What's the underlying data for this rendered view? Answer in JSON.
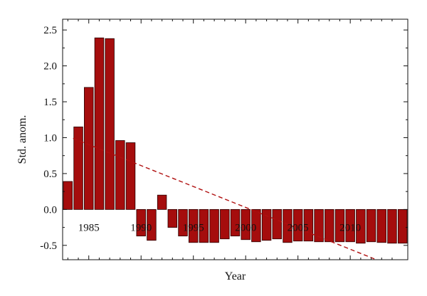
{
  "chart_data": {
    "type": "bar",
    "xlabel": "Year",
    "ylabel": "Std. anom.",
    "title": "",
    "xlim": [
      1982.5,
      2015.5
    ],
    "ylim": [
      -0.7,
      2.65
    ],
    "x_ticks": [
      1985,
      1990,
      1995,
      2000,
      2005,
      2010
    ],
    "y_ticks": [
      -0.5,
      0.0,
      0.5,
      1.0,
      1.5,
      2.0,
      2.5
    ],
    "y_tick_labels": [
      "-0.5",
      "0.0",
      "0.5",
      "1.0",
      "1.5",
      "2.0",
      "2.5"
    ],
    "grid": false,
    "bar_color": "#A50D0D",
    "bar_edge_color": "#2a0000",
    "trend_color": "#B01010",
    "x": [
      1983,
      1984,
      1985,
      1986,
      1987,
      1988,
      1989,
      1990,
      1991,
      1992,
      1993,
      1994,
      1995,
      1996,
      1997,
      1998,
      1999,
      2000,
      2001,
      2002,
      2003,
      2004,
      2005,
      2006,
      2007,
      2008,
      2009,
      2010,
      2011,
      2012,
      2013,
      2014,
      2015
    ],
    "values": [
      0.39,
      1.15,
      1.7,
      2.39,
      2.38,
      0.96,
      0.93,
      -0.37,
      -0.43,
      0.2,
      -0.25,
      -0.37,
      -0.46,
      -0.46,
      -0.46,
      -0.41,
      -0.37,
      -0.42,
      -0.45,
      -0.43,
      -0.41,
      -0.46,
      -0.44,
      -0.44,
      -0.45,
      -0.45,
      -0.45,
      -0.45,
      -0.47,
      -0.45,
      -0.46,
      -0.47,
      -0.47
    ],
    "trend_line": {
      "x": [
        1983.5,
        2012.5
      ],
      "y": [
        0.99,
        -0.7
      ]
    }
  }
}
